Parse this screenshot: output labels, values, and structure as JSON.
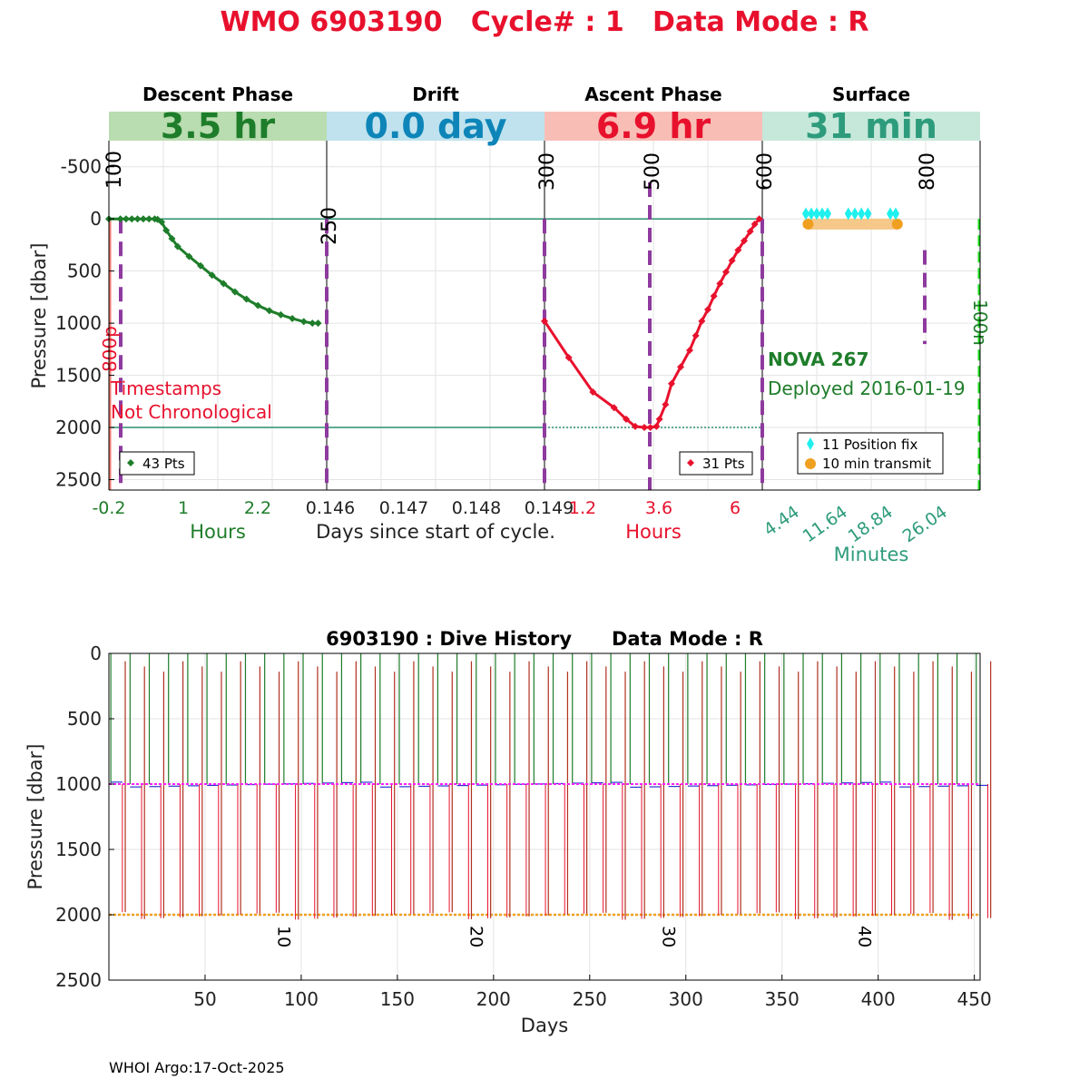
{
  "header": {
    "title": "WMO 6903190   Cycle# : 1   Data Mode : R",
    "footer": "WHOI Argo:17-Oct-2025"
  },
  "colors": {
    "title": "#e8112d",
    "descent": "#1e7d2a",
    "descent_bg": "#b9dcb0",
    "drift": "#0e85b8",
    "drift_bg": "#bfe2ee",
    "ascent": "#e8112d",
    "ascent_bg": "#f8beb6",
    "surface": "#2e9c7c",
    "surface_bg": "#c6e8da",
    "purple": "#8e3a9e",
    "green_line": "#2a8f6e",
    "cyan": "#1ff0ee",
    "orange": "#f0a020",
    "orange_band": "#f6c88a",
    "bright_green": "#1fe01f",
    "salmon": "#f07a70",
    "magenta": "#ff20ff",
    "blue": "#2a35d0"
  },
  "chart_data": [
    {
      "type": "line",
      "id": "cycle-profile",
      "ylabel": "Pressure [dbar]",
      "ylim": [
        -750,
        2600
      ],
      "y_reversed": true,
      "yticks": [
        -500,
        0,
        500,
        1000,
        1500,
        2000,
        2500
      ],
      "panels": [
        {
          "name": "Descent Phase",
          "banner": "3.5 hr",
          "xlabel": "Hours",
          "xticks": [
            "-0.2",
            "1",
            "2.2"
          ],
          "xlim": [
            -0.2,
            3.6
          ],
          "count_label": "43 Pts",
          "series": [
            {
              "name": "descent",
              "x": [
                -0.2,
                0.0,
                0.1,
                0.2,
                0.3,
                0.4,
                0.5,
                0.6,
                0.65,
                0.72,
                0.8,
                0.9,
                1.0,
                1.2,
                1.4,
                1.6,
                1.8,
                2.0,
                2.2,
                2.4,
                2.6,
                2.8,
                3.0,
                3.2,
                3.35,
                3.45
              ],
              "y": [
                0,
                0,
                0,
                0,
                0,
                0,
                0,
                0,
                5,
                30,
                110,
                190,
                265,
                360,
                450,
                540,
                620,
                700,
                770,
                830,
                880,
                920,
                955,
                985,
                1000,
                1000
              ]
            }
          ]
        },
        {
          "name": "Drift",
          "banner": "0.0 day",
          "xlabel": "Days since start of cycle.",
          "xticks": [
            "0.146",
            "0.147",
            "0.148",
            "0.149"
          ],
          "xlim": [
            0.146,
            0.149
          ],
          "series": []
        },
        {
          "name": "Ascent Phase",
          "banner": "6.9 hr",
          "xlabel": "Hours",
          "xticks": [
            "1.2",
            "3.6",
            "6"
          ],
          "xlim": [
            0.0,
            7.2
          ],
          "count_label": "31 Pts",
          "series": [
            {
              "name": "ascent",
              "x": [
                0.0,
                0.8,
                1.6,
                2.3,
                2.7,
                3.0,
                3.3,
                3.5,
                3.7,
                3.8,
                4.0,
                4.2,
                4.5,
                4.8,
                5.0,
                5.2,
                5.4,
                5.6,
                5.8,
                6.0,
                6.2,
                6.4,
                6.6,
                6.8,
                6.95,
                7.1
              ],
              "y": [
                980,
                1330,
                1660,
                1810,
                1920,
                1990,
                2000,
                2000,
                1990,
                1920,
                1780,
                1580,
                1420,
                1260,
                1120,
                980,
                870,
                740,
                620,
                510,
                400,
                300,
                210,
                120,
                50,
                0
              ]
            }
          ]
        },
        {
          "name": "Surface",
          "banner": "31 min",
          "xlabel": "Minutes",
          "xticks": [
            "4.44",
            "11.64",
            "18.84",
            "26.04"
          ],
          "xlim": [
            0,
            40
          ],
          "series": [
            {
              "name": "11 Position fix",
              "x": [
                8.0,
                9.0,
                10.0,
                11.0,
                12.0,
                15.8,
                17.0,
                18.2,
                19.4,
                23.5,
                24.5
              ],
              "y": [
                -50,
                -50,
                -50,
                -50,
                -50,
                -50,
                -50,
                -50,
                -50,
                -50,
                -50
              ]
            },
            {
              "name": "10 min transmit",
              "x": [
                8.4,
                24.8
              ],
              "y": [
                50,
                50
              ]
            }
          ]
        }
      ],
      "annotations": {
        "dashed_markers": [
          "100",
          "250",
          "300",
          "500",
          "600",
          "800"
        ],
        "depth_800": "800p",
        "depth_100": "100n",
        "warning_line1": "Timestamps",
        "warning_line2": "Not Chronological",
        "float_name": "NOVA 267",
        "deployed": "Deployed 2016-01-19"
      }
    },
    {
      "type": "line",
      "id": "dive-history",
      "title": "6903190 : Dive History      Data Mode : R",
      "xlabel": "Days",
      "ylabel": "Pressure [dbar]",
      "xlim": [
        0,
        453
      ],
      "ylim": [
        0,
        2500
      ],
      "y_reversed": true,
      "xticks": [
        50,
        100,
        150,
        200,
        250,
        300,
        350,
        400,
        450
      ],
      "yticks": [
        0,
        500,
        1000,
        1500,
        2000,
        2500
      ],
      "cycle_labels": [
        {
          "day": 88,
          "label": "10"
        },
        {
          "day": 188,
          "label": "20"
        },
        {
          "day": 288,
          "label": "30"
        },
        {
          "day": 390,
          "label": "40"
        }
      ],
      "cycles": {
        "count": 46,
        "first_day": 1,
        "interval_days": 10,
        "park_pressure": 1000,
        "profile_pressure": 2000,
        "offset_days": 7.5
      }
    }
  ]
}
